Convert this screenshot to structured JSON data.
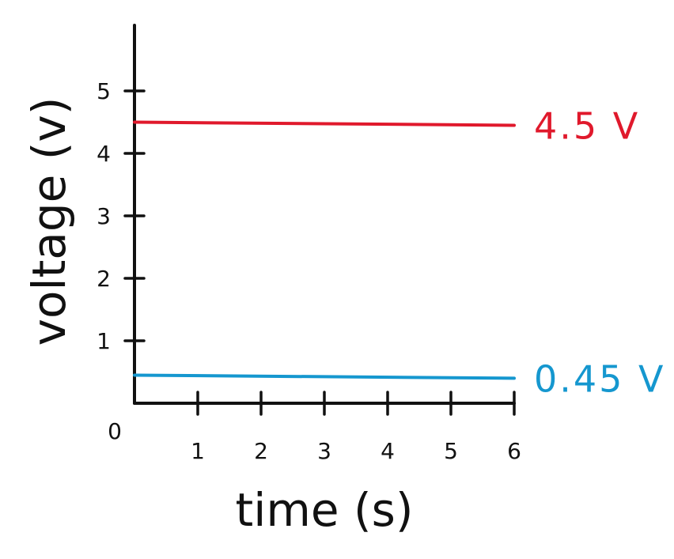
{
  "chart_data": {
    "type": "line",
    "xlabel": "time (s)",
    "ylabel": "voltage (v)",
    "xlim": [
      0,
      6
    ],
    "ylim": [
      0,
      6
    ],
    "x_ticks": [
      1,
      2,
      3,
      4,
      5,
      6
    ],
    "y_ticks": [
      1,
      2,
      3,
      4,
      5
    ],
    "origin_label": "0",
    "grid": false,
    "series": [
      {
        "x": [
          0,
          6
        ],
        "values": [
          4.5,
          4.45
        ],
        "color": "#e0192c",
        "annotation": "4.5 V"
      },
      {
        "x": [
          0,
          6
        ],
        "values": [
          0.45,
          0.4
        ],
        "color": "#1597cf",
        "annotation": "0.45 V"
      }
    ]
  }
}
